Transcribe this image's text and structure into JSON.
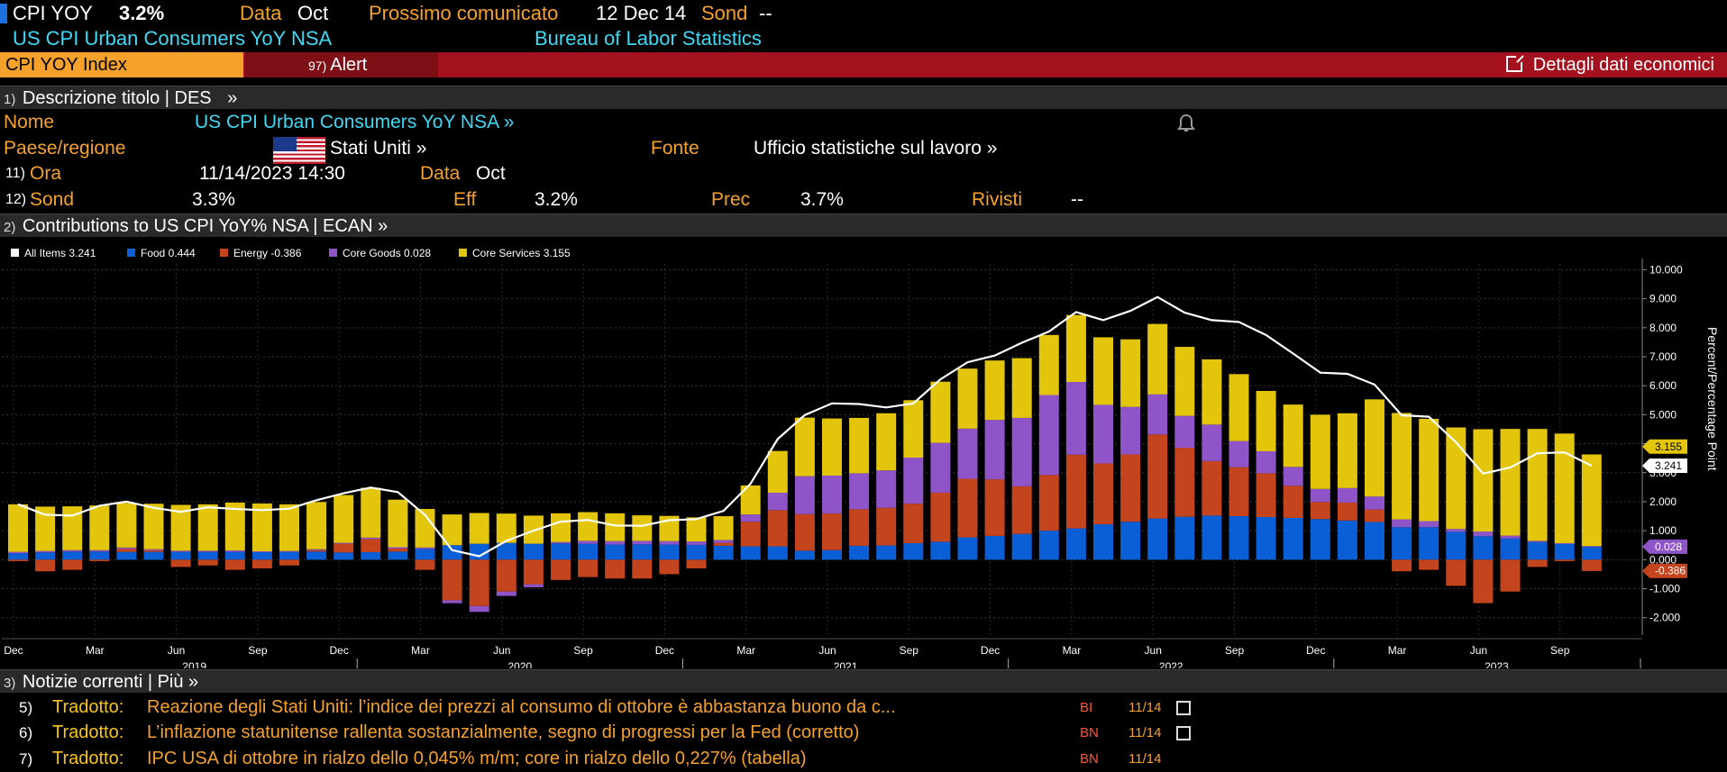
{
  "top": {
    "ticker": "CPI YOY",
    "value": "3.2%",
    "data_label": "Data",
    "data_value": "Oct",
    "next_label": "Prossimo comunicato",
    "next_value": "12 Dec 14",
    "sond_label": "Sond",
    "sond_value": "--",
    "name": "US CPI Urban Consumers YoY NSA",
    "source": "Bureau of Labor Statistics"
  },
  "toolbar": {
    "index_label": "CPI YOY Index",
    "alert_num": "97)",
    "alert_label": "Alert",
    "details_label": "Dettagli dati economici"
  },
  "des": {
    "num": "1)",
    "title": "Descrizione titolo | DES",
    "chevron": "»",
    "nome_label": "Nome",
    "nome_value": "US CPI Urban Consumers YoY NSA »",
    "paese_label": "Paese/regione",
    "paese_value": "Stati Uniti »",
    "fonte_label": "Fonte",
    "fonte_value": "Ufficio statistiche sul lavoro »",
    "ora_num": "11)",
    "ora_label": "Ora",
    "ora_value": "11/14/2023 14:30",
    "dataf_label": "Data",
    "dataf_value": "Oct",
    "sond_num": "12)",
    "sond_label": "Sond",
    "sond_value": "3.3%",
    "eff_label": "Eff",
    "eff_value": "3.2%",
    "prec_label": "Prec",
    "prec_value": "3.7%",
    "rivisti_label": "Rivisti",
    "rivisti_value": "--"
  },
  "ecan": {
    "num": "2)",
    "title": "Contributions to US CPI YoY% NSA | ECAN »"
  },
  "colors": {
    "all_items": "#ffffff",
    "food": "#0a5fd6",
    "energy": "#c4441d",
    "core_goods": "#8f55c8",
    "core_services": "#e3c60c"
  },
  "chart_data": {
    "type": "bar",
    "ylabel": "Percent/Percentage Point",
    "ylim": [
      -2.6,
      10.2
    ],
    "y_ticks": [
      "10.000",
      "9.000",
      "8.000",
      "7.000",
      "6.000",
      "5.000",
      "4.000",
      "3.000",
      "2.000",
      "1.000",
      "0.000",
      "-1.000",
      "-2.000"
    ],
    "legend": [
      {
        "name": "All Items",
        "value": "3.241"
      },
      {
        "name": "Food",
        "value": "0.444"
      },
      {
        "name": "Energy",
        "value": "-0.386"
      },
      {
        "name": "Core Goods",
        "value": "0.028"
      },
      {
        "name": "Core Services",
        "value": "3.155"
      }
    ],
    "right_labels": [
      "3.155",
      "3.241",
      "0.028",
      "-0.386"
    ],
    "month_labels": [
      "Dec",
      "Mar",
      "Jun",
      "Sep",
      "Dec",
      "Mar",
      "Jun",
      "Sep",
      "Dec",
      "Mar",
      "Jun",
      "Sep",
      "Dec",
      "Mar",
      "Jun",
      "Sep",
      "Dec",
      "Mar",
      "Jun",
      "Sep"
    ],
    "year_labels": [
      "2019",
      "2020",
      "2021",
      "2022",
      "2023"
    ],
    "categories": [
      "Dec 2018",
      "Jan 2019",
      "Feb 2019",
      "Mar 2019",
      "Apr 2019",
      "May 2019",
      "Jun 2019",
      "Jul 2019",
      "Aug 2019",
      "Sep 2019",
      "Oct 2019",
      "Nov 2019",
      "Dec 2019",
      "Jan 2020",
      "Feb 2020",
      "Mar 2020",
      "Apr 2020",
      "May 2020",
      "Jun 2020",
      "Jul 2020",
      "Aug 2020",
      "Sep 2020",
      "Oct 2020",
      "Nov 2020",
      "Dec 2020",
      "Jan 2021",
      "Feb 2021",
      "Mar 2021",
      "Apr 2021",
      "May 2021",
      "Jun 2021",
      "Jul 2021",
      "Aug 2021",
      "Sep 2021",
      "Oct 2021",
      "Nov 2021",
      "Dec 2021",
      "Jan 2022",
      "Feb 2022",
      "Mar 2022",
      "Apr 2022",
      "May 2022",
      "Jun 2022",
      "Jul 2022",
      "Aug 2022",
      "Sep 2022",
      "Oct 2022",
      "Nov 2022",
      "Dec 2022",
      "Jan 2023",
      "Feb 2023",
      "Mar 2023",
      "Apr 2023",
      "May 2023",
      "Jun 2023",
      "Jul 2023",
      "Aug 2023",
      "Sep 2023",
      "Oct 2023"
    ],
    "series": [
      {
        "name": "Food",
        "values": [
          0.22,
          0.25,
          0.28,
          0.28,
          0.27,
          0.27,
          0.27,
          0.27,
          0.27,
          0.26,
          0.27,
          0.28,
          0.25,
          0.26,
          0.28,
          0.37,
          0.5,
          0.55,
          0.58,
          0.55,
          0.56,
          0.55,
          0.52,
          0.53,
          0.52,
          0.51,
          0.48,
          0.46,
          0.46,
          0.31,
          0.33,
          0.48,
          0.49,
          0.57,
          0.62,
          0.77,
          0.82,
          0.89,
          1.0,
          1.08,
          1.22,
          1.31,
          1.42,
          1.48,
          1.52,
          1.5,
          1.47,
          1.44,
          1.4,
          1.35,
          1.3,
          1.12,
          1.12,
          0.96,
          0.81,
          0.73,
          0.61,
          0.54,
          0.44
        ]
      },
      {
        "name": "Energy",
        "values": [
          -0.05,
          -0.4,
          -0.35,
          -0.05,
          0.1,
          0.05,
          -0.25,
          -0.2,
          -0.35,
          -0.3,
          -0.2,
          0.05,
          0.3,
          0.45,
          0.1,
          -0.35,
          -1.4,
          -1.6,
          -1.1,
          -0.85,
          -0.7,
          -0.6,
          -0.65,
          -0.65,
          -0.5,
          -0.3,
          0.1,
          0.85,
          1.25,
          1.26,
          1.26,
          1.26,
          1.3,
          1.36,
          1.69,
          2.02,
          1.95,
          1.64,
          1.92,
          2.54,
          2.1,
          2.32,
          2.9,
          2.38,
          1.88,
          1.69,
          1.51,
          1.11,
          0.59,
          0.62,
          0.43,
          -0.4,
          -0.35,
          -0.9,
          -1.5,
          -1.1,
          -0.25,
          -0.05,
          -0.39
        ]
      },
      {
        "name": "Core Goods",
        "values": [
          0.05,
          0.05,
          0.05,
          0.05,
          0.05,
          0.04,
          0.04,
          0.04,
          0.05,
          0.03,
          0.03,
          0.03,
          0.03,
          0.05,
          0.05,
          0.05,
          -0.1,
          -0.2,
          -0.15,
          -0.1,
          0.05,
          0.1,
          0.12,
          0.12,
          0.12,
          0.12,
          0.1,
          0.25,
          0.6,
          1.31,
          1.31,
          1.24,
          1.29,
          1.59,
          1.72,
          1.73,
          2.05,
          2.36,
          2.76,
          2.51,
          2.02,
          1.64,
          1.38,
          1.1,
          1.26,
          0.9,
          0.76,
          0.65,
          0.45,
          0.5,
          0.45,
          0.27,
          0.21,
          0.1,
          0.16,
          0.1,
          0.04,
          0.03,
          0.03
        ]
      },
      {
        "name": "Core Services",
        "values": [
          1.64,
          1.53,
          1.51,
          1.54,
          1.54,
          1.57,
          1.58,
          1.6,
          1.65,
          1.65,
          1.61,
          1.63,
          1.65,
          1.72,
          1.64,
          1.33,
          1.06,
          1.06,
          1.01,
          0.97,
          0.99,
          0.99,
          0.96,
          0.88,
          0.87,
          0.83,
          0.82,
          1.0,
          1.44,
          2.02,
          1.97,
          1.91,
          1.97,
          1.98,
          2.11,
          2.07,
          2.05,
          2.06,
          2.07,
          2.31,
          2.33,
          2.33,
          2.43,
          2.38,
          2.25,
          2.31,
          2.08,
          2.15,
          2.56,
          2.58,
          3.35,
          3.67,
          3.53,
          3.5,
          3.53,
          3.68,
          3.86,
          3.78,
          3.16
        ]
      },
      {
        "name": "All Items",
        "values": [
          1.91,
          1.55,
          1.52,
          1.86,
          2.0,
          1.79,
          1.65,
          1.81,
          1.75,
          1.71,
          1.76,
          2.05,
          2.29,
          2.49,
          2.33,
          1.54,
          0.33,
          0.12,
          0.65,
          1.0,
          1.31,
          1.37,
          1.18,
          1.17,
          1.36,
          1.4,
          1.68,
          2.62,
          4.16,
          4.99,
          5.39,
          5.37,
          5.25,
          5.39,
          6.22,
          6.81,
          7.04,
          7.48,
          7.87,
          8.54,
          8.26,
          8.58,
          9.06,
          8.52,
          8.26,
          8.2,
          7.75,
          7.11,
          6.45,
          6.41,
          6.04,
          4.98,
          4.93,
          4.05,
          2.97,
          3.18,
          3.67,
          3.7,
          3.24
        ]
      }
    ]
  },
  "news": {
    "num": "3)",
    "title": "Notizie correnti | Più »",
    "items": [
      {
        "num": "5)",
        "tag": "Tradotto:",
        "headline": "Reazione degli Stati Uniti: l’indice dei prezzi al consumo di ottobre è abbastanza buono da c...",
        "source": "BI",
        "date": "11/14"
      },
      {
        "num": "6)",
        "tag": "Tradotto:",
        "headline": "L’inflazione statunitense rallenta sostanzialmente, segno di progressi per la Fed (corretto)",
        "source": "BN",
        "date": "11/14"
      },
      {
        "num": "7)",
        "tag": "Tradotto:",
        "headline": "IPC USA di ottobre in rialzo dello 0,045% m/m; core in rialzo dello 0,227% (tabella)",
        "source": "BN",
        "date": "11/14"
      }
    ]
  }
}
